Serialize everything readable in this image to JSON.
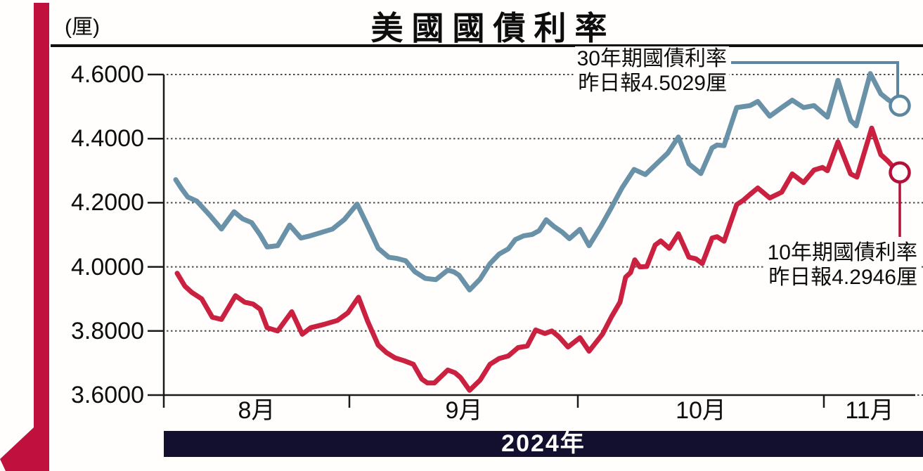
{
  "page": {
    "title": "美國國債利率",
    "unit_label": "(厘)",
    "year_banner": "2024年"
  },
  "annotations": {
    "series_30y": {
      "line1": "30年期國債利率",
      "line2": "昨日報4.5029厘"
    },
    "series_10y": {
      "line1": "10年期國債利率",
      "line2": "昨日報4.2946厘"
    }
  },
  "colors": {
    "line_30y": "#6991a8",
    "marker_30y": "#5d87a1",
    "line_10y": "#ca2140",
    "marker_10y": "#b31139",
    "ribbon_accent": "#c0113e",
    "banner_bg": "#12102e",
    "grid_dots": "#4a4a4a",
    "axis": "#1a1a1a"
  },
  "chart_data": {
    "type": "line",
    "title": "美國國債利率",
    "unit": "厘",
    "grid": "dotted horizontal, on",
    "legend_position": "annotations at line endpoints",
    "x_axis": {
      "labels": [
        "8月",
        "9月",
        "10月",
        "11月"
      ],
      "year": "2024年"
    },
    "y_axis": {
      "min": 3.6,
      "max": 4.6,
      "ticks": [
        4.6,
        4.4,
        4.2,
        4.0,
        3.8,
        3.6
      ],
      "tick_labels": [
        "4.6000",
        "4.4000",
        "4.2000",
        "4.0000",
        "3.8000",
        "3.6000"
      ]
    },
    "series": [
      {
        "name": "30年期國債利率",
        "latest": 4.5029,
        "latest_label": "昨日報4.5029厘",
        "color": "#6991a8",
        "marker_color": "#5d87a1",
        "points": [
          [
            250,
            4.272
          ],
          [
            258,
            4.245
          ],
          [
            267,
            4.218
          ],
          [
            280,
            4.205
          ],
          [
            298,
            4.162
          ],
          [
            315,
            4.118
          ],
          [
            333,
            4.172
          ],
          [
            345,
            4.15
          ],
          [
            358,
            4.138
          ],
          [
            370,
            4.1
          ],
          [
            380,
            4.062
          ],
          [
            395,
            4.066
          ],
          [
            412,
            4.13
          ],
          [
            428,
            4.09
          ],
          [
            440,
            4.096
          ],
          [
            455,
            4.106
          ],
          [
            473,
            4.118
          ],
          [
            490,
            4.148
          ],
          [
            508,
            4.196
          ],
          [
            523,
            4.128
          ],
          [
            538,
            4.058
          ],
          [
            553,
            4.03
          ],
          [
            565,
            4.026
          ],
          [
            577,
            4.019
          ],
          [
            590,
            3.985
          ],
          [
            605,
            3.964
          ],
          [
            620,
            3.96
          ],
          [
            637,
            3.99
          ],
          [
            646,
            3.984
          ],
          [
            653,
            3.974
          ],
          [
            668,
            3.928
          ],
          [
            683,
            3.962
          ],
          [
            697,
            4.01
          ],
          [
            710,
            4.04
          ],
          [
            723,
            4.056
          ],
          [
            733,
            4.085
          ],
          [
            745,
            4.097
          ],
          [
            757,
            4.101
          ],
          [
            767,
            4.113
          ],
          [
            777,
            4.147
          ],
          [
            788,
            4.126
          ],
          [
            800,
            4.108
          ],
          [
            810,
            4.088
          ],
          [
            825,
            4.117
          ],
          [
            838,
            4.066
          ],
          [
            855,
            4.127
          ],
          [
            870,
            4.186
          ],
          [
            885,
            4.247
          ],
          [
            902,
            4.304
          ],
          [
            918,
            4.288
          ],
          [
            938,
            4.33
          ],
          [
            950,
            4.355
          ],
          [
            965,
            4.405
          ],
          [
            980,
            4.321
          ],
          [
            997,
            4.291
          ],
          [
            1013,
            4.371
          ],
          [
            1020,
            4.38
          ],
          [
            1030,
            4.378
          ],
          [
            1048,
            4.497
          ],
          [
            1067,
            4.503
          ],
          [
            1078,
            4.516
          ],
          [
            1095,
            4.47
          ],
          [
            1112,
            4.497
          ],
          [
            1127,
            4.52
          ],
          [
            1143,
            4.497
          ],
          [
            1158,
            4.503
          ],
          [
            1177,
            4.467
          ],
          [
            1192,
            4.582
          ],
          [
            1210,
            4.457
          ],
          [
            1218,
            4.44
          ],
          [
            1238,
            4.603
          ],
          [
            1253,
            4.54
          ],
          [
            1263,
            4.522
          ],
          [
            1277,
            4.503
          ]
        ]
      },
      {
        "name": "10年期國債利率",
        "latest": 4.2946,
        "latest_label": "昨日報4.2946厘",
        "color": "#ca2140",
        "marker_color": "#b31139",
        "points": [
          [
            252,
            3.98
          ],
          [
            263,
            3.94
          ],
          [
            273,
            3.92
          ],
          [
            287,
            3.9
          ],
          [
            302,
            3.843
          ],
          [
            315,
            3.836
          ],
          [
            335,
            3.91
          ],
          [
            348,
            3.89
          ],
          [
            360,
            3.884
          ],
          [
            370,
            3.868
          ],
          [
            380,
            3.81
          ],
          [
            395,
            3.8
          ],
          [
            415,
            3.86
          ],
          [
            430,
            3.79
          ],
          [
            442,
            3.81
          ],
          [
            460,
            3.82
          ],
          [
            480,
            3.833
          ],
          [
            495,
            3.857
          ],
          [
            510,
            3.905
          ],
          [
            523,
            3.83
          ],
          [
            538,
            3.756
          ],
          [
            550,
            3.732
          ],
          [
            562,
            3.716
          ],
          [
            575,
            3.707
          ],
          [
            588,
            3.696
          ],
          [
            600,
            3.65
          ],
          [
            608,
            3.638
          ],
          [
            618,
            3.638
          ],
          [
            637,
            3.678
          ],
          [
            647,
            3.67
          ],
          [
            655,
            3.655
          ],
          [
            668,
            3.615
          ],
          [
            683,
            3.647
          ],
          [
            697,
            3.696
          ],
          [
            710,
            3.714
          ],
          [
            723,
            3.722
          ],
          [
            737,
            3.748
          ],
          [
            750,
            3.753
          ],
          [
            762,
            3.803
          ],
          [
            775,
            3.792
          ],
          [
            785,
            3.8
          ],
          [
            795,
            3.782
          ],
          [
            808,
            3.75
          ],
          [
            825,
            3.779
          ],
          [
            838,
            3.737
          ],
          [
            857,
            3.79
          ],
          [
            870,
            3.845
          ],
          [
            882,
            3.89
          ],
          [
            890,
            3.968
          ],
          [
            897,
            3.982
          ],
          [
            903,
            4.022
          ],
          [
            910,
            4.0
          ],
          [
            920,
            4.001
          ],
          [
            932,
            4.068
          ],
          [
            940,
            4.081
          ],
          [
            952,
            4.058
          ],
          [
            965,
            4.103
          ],
          [
            980,
            4.03
          ],
          [
            990,
            4.025
          ],
          [
            999,
            4.01
          ],
          [
            1013,
            4.09
          ],
          [
            1020,
            4.094
          ],
          [
            1030,
            4.08
          ],
          [
            1048,
            4.194
          ],
          [
            1057,
            4.207
          ],
          [
            1067,
            4.226
          ],
          [
            1078,
            4.246
          ],
          [
            1095,
            4.215
          ],
          [
            1112,
            4.233
          ],
          [
            1127,
            4.29
          ],
          [
            1143,
            4.263
          ],
          [
            1158,
            4.302
          ],
          [
            1170,
            4.31
          ],
          [
            1177,
            4.3
          ],
          [
            1192,
            4.39
          ],
          [
            1210,
            4.29
          ],
          [
            1219,
            4.28
          ],
          [
            1240,
            4.433
          ],
          [
            1253,
            4.35
          ],
          [
            1263,
            4.33
          ],
          [
            1277,
            4.297
          ]
        ]
      }
    ]
  }
}
